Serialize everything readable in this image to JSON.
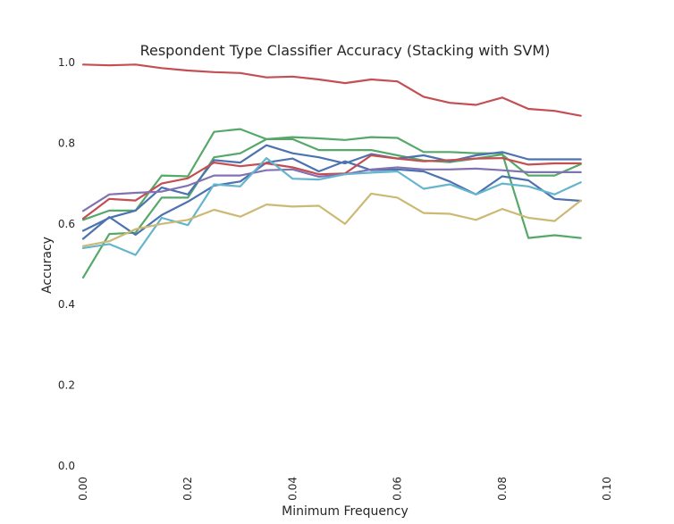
{
  "chart_data": {
    "type": "line",
    "title": "Respondent Type Classifier Accuracy (Stacking with SVM)",
    "xlabel": "Minimum Frequency",
    "ylabel": "Accuracy",
    "xlim": [
      0.0,
      0.1
    ],
    "ylim": [
      0.0,
      1.0
    ],
    "xticks": [
      "0.00",
      "0.02",
      "0.04",
      "0.06",
      "0.08",
      "0.10"
    ],
    "yticks": [
      "0.0",
      "0.2",
      "0.4",
      "0.6",
      "0.8",
      "1.0"
    ],
    "grid": false,
    "x": [
      0.0,
      0.005,
      0.01,
      0.015,
      0.02,
      0.025,
      0.03,
      0.035,
      0.04,
      0.045,
      0.05,
      0.055,
      0.06,
      0.065,
      0.07,
      0.075,
      0.08,
      0.085,
      0.09,
      0.095
    ],
    "series": [
      {
        "color": "#c44e52",
        "values": [
          0.995,
          0.993,
          0.995,
          0.986,
          0.98,
          0.976,
          0.974,
          0.963,
          0.965,
          0.958,
          0.949,
          0.958,
          0.953,
          0.915,
          0.9,
          0.895,
          0.913,
          0.885,
          0.88,
          0.868
        ]
      },
      {
        "color": "#55a868",
        "values": [
          0.61,
          0.633,
          0.633,
          0.72,
          0.718,
          0.828,
          0.835,
          0.81,
          0.81,
          0.783,
          0.783,
          0.783,
          0.77,
          0.757,
          0.753,
          0.762,
          0.772,
          0.72,
          0.72,
          0.748
        ]
      },
      {
        "color": "#55a868",
        "values": [
          0.467,
          0.575,
          0.578,
          0.665,
          0.665,
          0.765,
          0.775,
          0.81,
          0.815,
          0.812,
          0.808,
          0.815,
          0.813,
          0.778,
          0.778,
          0.775,
          0.775,
          0.565,
          0.572,
          0.565
        ]
      },
      {
        "color": "#4c72b0",
        "values": [
          0.583,
          0.615,
          0.633,
          0.69,
          0.673,
          0.758,
          0.752,
          0.795,
          0.775,
          0.765,
          0.75,
          0.773,
          0.762,
          0.77,
          0.755,
          0.77,
          0.778,
          0.76,
          0.76,
          0.76
        ]
      },
      {
        "color": "#4c72b0",
        "values": [
          0.563,
          0.617,
          0.573,
          0.622,
          0.655,
          0.695,
          0.705,
          0.752,
          0.762,
          0.73,
          0.755,
          0.733,
          0.735,
          0.73,
          0.705,
          0.673,
          0.718,
          0.708,
          0.662,
          0.657
        ]
      },
      {
        "color": "#c44e52",
        "values": [
          0.613,
          0.662,
          0.658,
          0.7,
          0.713,
          0.752,
          0.743,
          0.75,
          0.74,
          0.723,
          0.725,
          0.77,
          0.762,
          0.755,
          0.758,
          0.762,
          0.763,
          0.747,
          0.75,
          0.75
        ]
      },
      {
        "color": "#8172b2",
        "values": [
          0.632,
          0.673,
          0.677,
          0.68,
          0.695,
          0.72,
          0.72,
          0.733,
          0.735,
          0.717,
          0.723,
          0.735,
          0.74,
          0.735,
          0.735,
          0.737,
          0.733,
          0.728,
          0.728,
          0.728
        ]
      },
      {
        "color": "#64b5cd",
        "values": [
          0.54,
          0.55,
          0.523,
          0.615,
          0.597,
          0.698,
          0.693,
          0.763,
          0.712,
          0.71,
          0.723,
          0.727,
          0.73,
          0.687,
          0.698,
          0.673,
          0.7,
          0.693,
          0.673,
          0.703
        ]
      },
      {
        "color": "#ccb974",
        "values": [
          0.545,
          0.557,
          0.587,
          0.6,
          0.61,
          0.635,
          0.618,
          0.648,
          0.643,
          0.645,
          0.6,
          0.675,
          0.665,
          0.627,
          0.625,
          0.61,
          0.637,
          0.615,
          0.607,
          0.658
        ]
      }
    ]
  }
}
